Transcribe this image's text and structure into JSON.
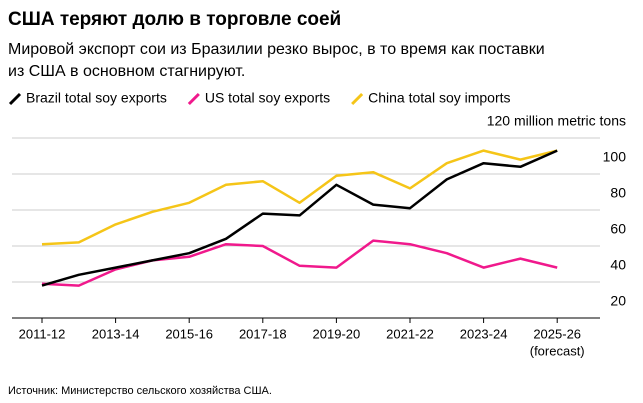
{
  "chart_data": {
    "type": "line",
    "title": "США теряют долю в торговле соей",
    "subtitle": [
      "Мировой экспорт сои из Бразилии резко вырос, в то время как поставки",
      "из США в основном стагнируют."
    ],
    "categories": [
      "2011-12",
      null,
      "2013-14",
      null,
      "2015-16",
      null,
      "2017-18",
      null,
      "2019-20",
      null,
      "2021-22",
      null,
      "2023-24",
      null,
      "2025-26"
    ],
    "annotations": [
      "(forecast)"
    ],
    "series": [
      {
        "name": "Brazil total soy exports",
        "color": "#000000",
        "values": [
          38,
          44,
          48,
          52,
          56,
          64,
          78,
          77,
          94,
          83,
          81,
          97,
          106,
          104,
          113
        ]
      },
      {
        "name": "US total soy exports",
        "color": "#f0198c",
        "values": [
          39,
          38,
          47,
          52,
          54,
          61,
          60,
          49,
          48,
          63,
          61,
          56,
          48,
          53,
          48
        ]
      },
      {
        "name": "China total soy imports",
        "color": "#f5c518",
        "values": [
          61,
          62,
          72,
          79,
          84,
          94,
          96,
          84,
          99,
          101,
          92,
          106,
          113,
          108,
          113
        ]
      }
    ],
    "ylim": [
      20,
      120
    ],
    "yticks": [
      20,
      40,
      60,
      80,
      100,
      {
        "value": 120,
        "label": "120 million metric tons"
      }
    ],
    "grid": true,
    "source": "Источник: Министерство сельского хозяйства США."
  }
}
